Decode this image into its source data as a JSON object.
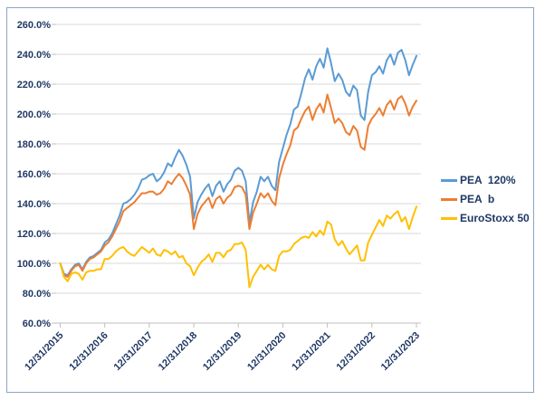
{
  "chart_data": {
    "type": "line",
    "title": "",
    "xlabel": "",
    "ylabel": "",
    "grid": true,
    "legend_position": "right",
    "ylim": [
      60,
      260
    ],
    "y_major_step": 20,
    "y_tick_labels": [
      "260.0%",
      "240.0%",
      "220.0%",
      "200.0%",
      "180.0%",
      "160.0%",
      "140.0%",
      "120.0%",
      "100.0%",
      "80.0%",
      "60.0%"
    ],
    "x_tick_labels": [
      "12/31/2015",
      "12/31/2016",
      "12/31/2017",
      "12/31/2018",
      "12/31/2019",
      "12/31/2020",
      "12/31/2021",
      "12/31/2022",
      "12/31/2023"
    ],
    "x_resolution": "monthly",
    "axis_label_color": "#1F3864",
    "gridline_color": "#D9D9D9",
    "axis_line_color": "#BFBFBF",
    "series": [
      {
        "name": "PEA  120%",
        "slug": "pea-120",
        "color": "#5B9BD5",
        "values": [
          100,
          93,
          92,
          96,
          99,
          100,
          96,
          101,
          104,
          105,
          107,
          109,
          114,
          116,
          120,
          126,
          132,
          140,
          141,
          143,
          146,
          150,
          156,
          157,
          159,
          160,
          155,
          157,
          161,
          167,
          165,
          171,
          176,
          172,
          166,
          158,
          130,
          141,
          146,
          150,
          153,
          145,
          152,
          155,
          148,
          153,
          156,
          162,
          164,
          162,
          155,
          127,
          141,
          148,
          158,
          155,
          158,
          152,
          149,
          168,
          177,
          186,
          193,
          203,
          205,
          214,
          224,
          230,
          223,
          232,
          237,
          231,
          244,
          234,
          222,
          227,
          223,
          215,
          212,
          219,
          216,
          199,
          196,
          215,
          226,
          228,
          232,
          227,
          236,
          240,
          233,
          241,
          243,
          236,
          226,
          233,
          239
        ]
      },
      {
        "name": "PEA  b",
        "slug": "pea-b",
        "color": "#ED7D31",
        "values": [
          100,
          92,
          91,
          95,
          98,
          99,
          95,
          100,
          103,
          104,
          106,
          108,
          112,
          114,
          118,
          123,
          128,
          135,
          137,
          139,
          141,
          144,
          147,
          147,
          148,
          148,
          146,
          147,
          150,
          155,
          153,
          157,
          160,
          157,
          152,
          146,
          123,
          133,
          138,
          141,
          144,
          137,
          143,
          145,
          140,
          144,
          146,
          151,
          152,
          151,
          146,
          123,
          134,
          140,
          147,
          144,
          147,
          142,
          139,
          157,
          166,
          173,
          179,
          189,
          191,
          197,
          202,
          205,
          196,
          203,
          207,
          201,
          213,
          204,
          194,
          197,
          194,
          188,
          186,
          192,
          189,
          178,
          176,
          192,
          197,
          200,
          204,
          199,
          206,
          209,
          203,
          210,
          212,
          207,
          199,
          205,
          209
        ]
      },
      {
        "name": "EuroStoxx 50",
        "slug": "eurostoxx-50",
        "color": "#FFC000",
        "values": [
          100,
          91,
          88,
          93,
          94,
          93,
          89,
          94,
          95,
          95,
          96,
          96,
          103,
          103,
          105,
          108,
          110,
          111,
          108,
          106,
          105,
          108,
          111,
          109,
          107,
          110,
          106,
          105,
          109,
          108,
          106,
          108,
          104,
          105,
          100,
          98,
          92,
          97,
          101,
          103,
          106,
          101,
          107,
          107,
          104,
          108,
          109,
          113,
          113,
          114,
          109,
          84,
          91,
          95,
          99,
          96,
          99,
          96,
          95,
          105,
          108,
          108,
          109,
          113,
          115,
          117,
          118,
          117,
          121,
          118,
          122,
          119,
          128,
          126,
          116,
          112,
          115,
          110,
          106,
          109,
          112,
          102,
          102,
          114,
          119,
          124,
          129,
          125,
          132,
          130,
          133,
          135,
          128,
          131,
          123,
          131,
          138
        ]
      }
    ]
  },
  "frame": {
    "border_color": "#8fa4c2"
  }
}
